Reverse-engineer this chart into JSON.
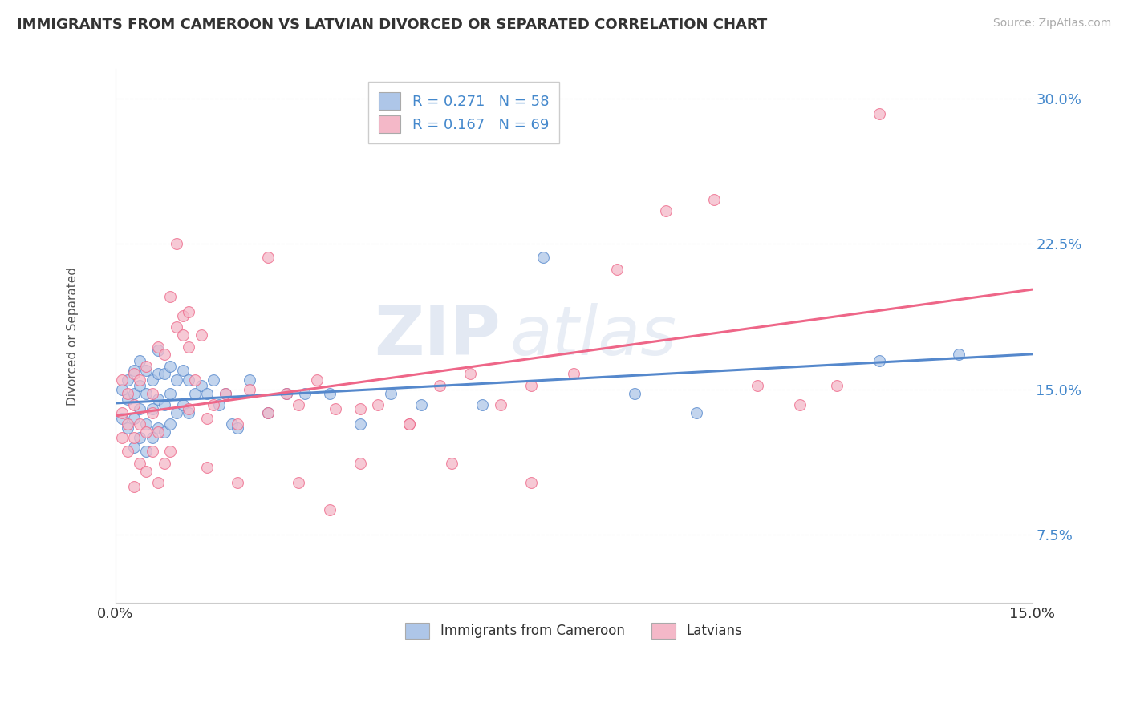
{
  "title": "IMMIGRANTS FROM CAMEROON VS LATVIAN DIVORCED OR SEPARATED CORRELATION CHART",
  "source_text": "Source: ZipAtlas.com",
  "ylabel": "Divorced or Separated",
  "legend_label1": "Immigrants from Cameroon",
  "legend_label2": "Latvians",
  "r1": 0.271,
  "n1": 58,
  "r2": 0.167,
  "n2": 69,
  "color1": "#aec6e8",
  "color2": "#f4b8c8",
  "line_color1": "#5588cc",
  "line_color2": "#ee6688",
  "watermark_zip": "ZIP",
  "watermark_atlas": "atlas",
  "xlim": [
    0.0,
    0.15
  ],
  "ylim": [
    0.04,
    0.315
  ],
  "ytick_positions": [
    0.075,
    0.15,
    0.225,
    0.3
  ],
  "ytick_labels": [
    "7.5%",
    "15.0%",
    "22.5%",
    "30.0%"
  ],
  "background_color": "#ffffff",
  "grid_color": "#dddddd",
  "scatter1_x": [
    0.001,
    0.001,
    0.002,
    0.002,
    0.002,
    0.003,
    0.003,
    0.003,
    0.003,
    0.004,
    0.004,
    0.004,
    0.004,
    0.005,
    0.005,
    0.005,
    0.005,
    0.006,
    0.006,
    0.006,
    0.007,
    0.007,
    0.007,
    0.007,
    0.008,
    0.008,
    0.008,
    0.009,
    0.009,
    0.009,
    0.01,
    0.01,
    0.011,
    0.011,
    0.012,
    0.012,
    0.013,
    0.014,
    0.015,
    0.016,
    0.017,
    0.018,
    0.019,
    0.02,
    0.022,
    0.025,
    0.028,
    0.031,
    0.035,
    0.04,
    0.045,
    0.05,
    0.06,
    0.07,
    0.085,
    0.095,
    0.125,
    0.138
  ],
  "scatter1_y": [
    0.135,
    0.15,
    0.13,
    0.145,
    0.155,
    0.12,
    0.135,
    0.148,
    0.16,
    0.125,
    0.14,
    0.152,
    0.165,
    0.118,
    0.132,
    0.148,
    0.16,
    0.125,
    0.14,
    0.155,
    0.13,
    0.145,
    0.158,
    0.17,
    0.128,
    0.142,
    0.158,
    0.132,
    0.148,
    0.162,
    0.138,
    0.155,
    0.142,
    0.16,
    0.138,
    0.155,
    0.148,
    0.152,
    0.148,
    0.155,
    0.142,
    0.148,
    0.132,
    0.13,
    0.155,
    0.138,
    0.148,
    0.148,
    0.148,
    0.132,
    0.148,
    0.142,
    0.142,
    0.218,
    0.148,
    0.138,
    0.165,
    0.168
  ],
  "scatter2_x": [
    0.001,
    0.001,
    0.001,
    0.002,
    0.002,
    0.002,
    0.003,
    0.003,
    0.003,
    0.003,
    0.004,
    0.004,
    0.004,
    0.005,
    0.005,
    0.005,
    0.006,
    0.006,
    0.006,
    0.007,
    0.007,
    0.007,
    0.008,
    0.008,
    0.009,
    0.009,
    0.01,
    0.01,
    0.011,
    0.011,
    0.012,
    0.012,
    0.013,
    0.014,
    0.015,
    0.016,
    0.018,
    0.02,
    0.022,
    0.025,
    0.028,
    0.03,
    0.033,
    0.036,
    0.04,
    0.043,
    0.048,
    0.053,
    0.058,
    0.063,
    0.068,
    0.075,
    0.082,
    0.09,
    0.098,
    0.105,
    0.112,
    0.118,
    0.125,
    0.068,
    0.055,
    0.048,
    0.04,
    0.035,
    0.03,
    0.025,
    0.02,
    0.015,
    0.012
  ],
  "scatter2_y": [
    0.125,
    0.138,
    0.155,
    0.118,
    0.132,
    0.148,
    0.1,
    0.125,
    0.142,
    0.158,
    0.112,
    0.132,
    0.155,
    0.108,
    0.128,
    0.162,
    0.118,
    0.138,
    0.148,
    0.102,
    0.128,
    0.172,
    0.112,
    0.168,
    0.118,
    0.198,
    0.182,
    0.225,
    0.178,
    0.188,
    0.172,
    0.19,
    0.155,
    0.178,
    0.135,
    0.142,
    0.148,
    0.132,
    0.15,
    0.138,
    0.148,
    0.142,
    0.155,
    0.14,
    0.14,
    0.142,
    0.132,
    0.152,
    0.158,
    0.142,
    0.152,
    0.158,
    0.212,
    0.242,
    0.248,
    0.152,
    0.142,
    0.152,
    0.292,
    0.102,
    0.112,
    0.132,
    0.112,
    0.088,
    0.102,
    0.218,
    0.102,
    0.11,
    0.14
  ]
}
